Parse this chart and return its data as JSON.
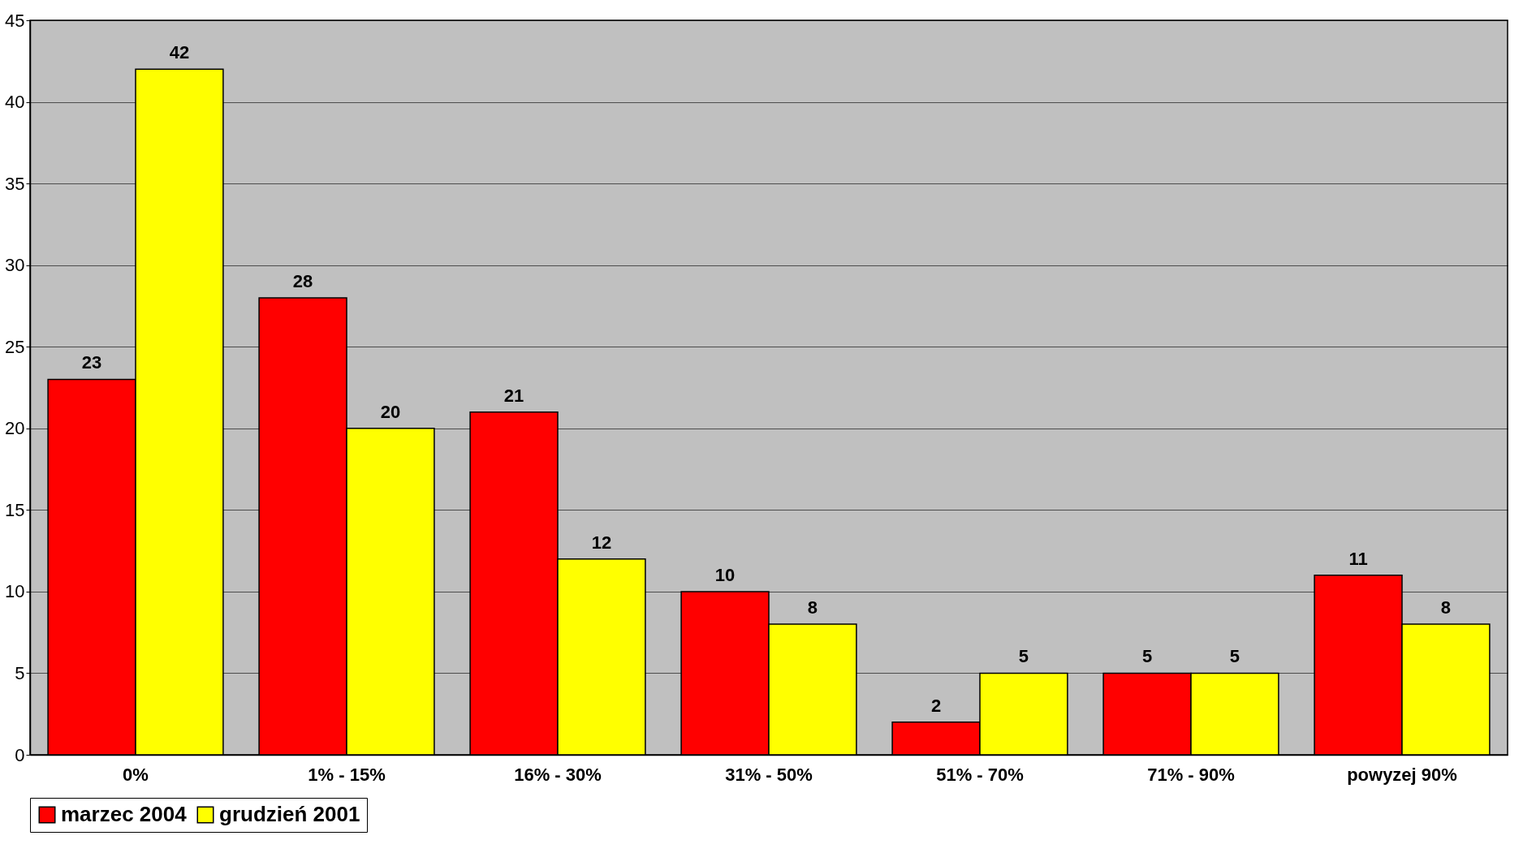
{
  "chart_data": {
    "type": "bar",
    "categories": [
      "0%",
      "1% - 15%",
      "16% - 30%",
      "31% - 50%",
      "51% - 70%",
      "71% - 90%",
      "powyzej 90%"
    ],
    "series": [
      {
        "name": "marzec 2004",
        "color": "#ff0000",
        "values": [
          23,
          28,
          21,
          10,
          2,
          5,
          11
        ]
      },
      {
        "name": "grudzień 2001",
        "color": "#ffff00",
        "values": [
          42,
          20,
          12,
          8,
          5,
          5,
          8
        ]
      }
    ],
    "ylim": [
      0,
      45
    ],
    "yticks": [
      0,
      5,
      10,
      15,
      20,
      25,
      30,
      35,
      40,
      45
    ],
    "grid": "y",
    "legend": "bottom",
    "data_labels": true
  }
}
